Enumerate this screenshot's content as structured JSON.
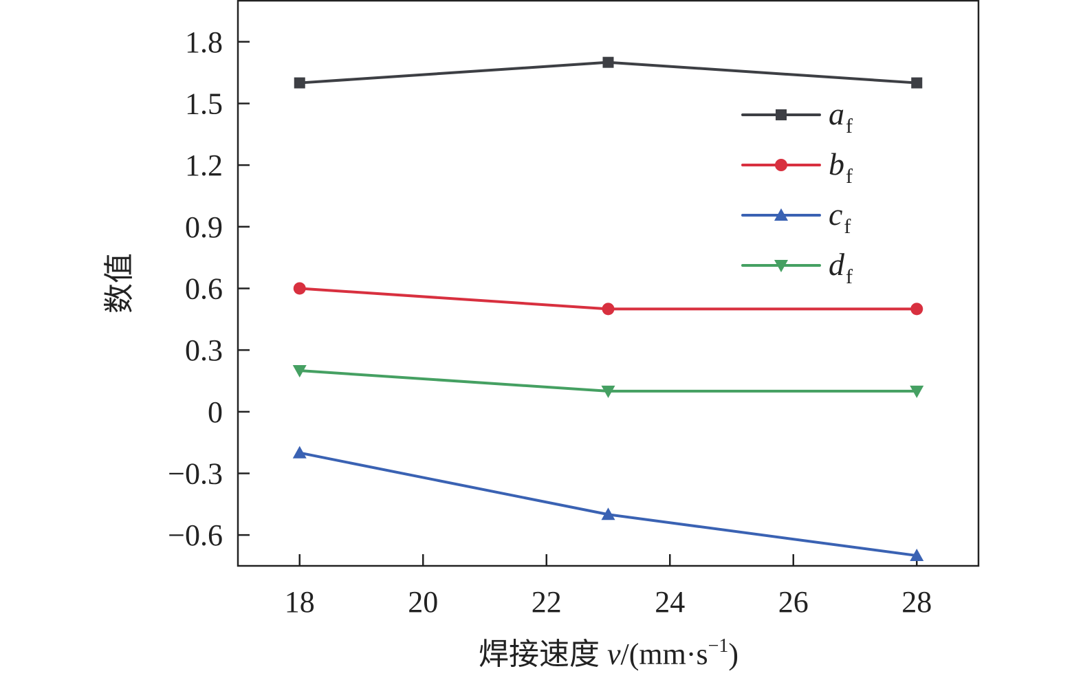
{
  "chart_data": {
    "type": "line",
    "title": "",
    "xlabel": "焊接速度 v/(mm·s⁻¹)",
    "xlabel_parts": {
      "cn": "焊接速度 ",
      "var": "v",
      "unit_open": "/(mm·s",
      "exp": "−1",
      "unit_close": ")"
    },
    "ylabel": "数值",
    "xlim": [
      17,
      29
    ],
    "ylim": [
      -0.75,
      2.0
    ],
    "xticks": [
      18,
      20,
      22,
      24,
      26,
      28
    ],
    "xtick_labels": [
      "18",
      "20",
      "22",
      "24",
      "26",
      "28"
    ],
    "yticks": [
      -0.6,
      -0.3,
      0,
      0.3,
      0.6,
      0.9,
      1.2,
      1.5,
      1.8
    ],
    "ytick_labels": [
      "−0.6",
      "−0.3",
      "0",
      "0.3",
      "0.6",
      "0.9",
      "1.2",
      "1.5",
      "1.8"
    ],
    "grid": false,
    "legend_position": "upper-right",
    "x": [
      18,
      23,
      28
    ],
    "series": [
      {
        "name": "a_f",
        "label": "a",
        "sub": "f",
        "marker": "square",
        "color": "#3d3f44",
        "values": [
          1.6,
          1.7,
          1.6
        ]
      },
      {
        "name": "b_f",
        "label": "b",
        "sub": "f",
        "marker": "circle",
        "color": "#d8303f",
        "values": [
          0.6,
          0.5,
          0.5
        ]
      },
      {
        "name": "c_f",
        "label": "c",
        "sub": "f",
        "marker": "triangle-up",
        "color": "#3a62b3",
        "values": [
          -0.2,
          -0.5,
          -0.7
        ]
      },
      {
        "name": "d_f",
        "label": "d",
        "sub": "f",
        "marker": "triangle-down",
        "color": "#45a062",
        "values": [
          0.2,
          0.1,
          0.1
        ]
      }
    ]
  }
}
